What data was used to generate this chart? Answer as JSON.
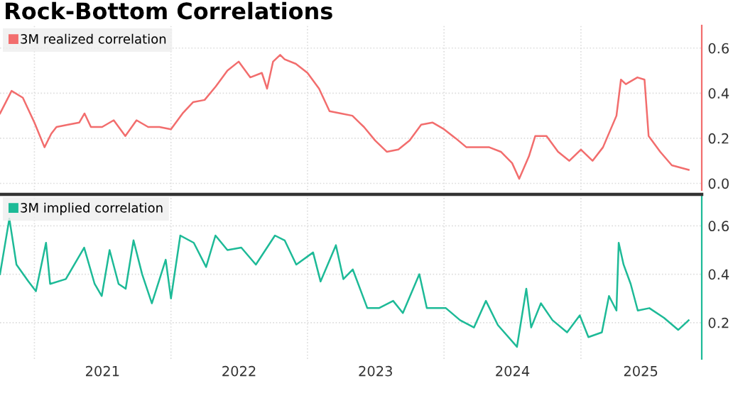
{
  "chart_data": [
    {
      "type": "line",
      "title": "Rock-Bottom Correlations",
      "legend": "top left",
      "grid": true,
      "tick_labels": "y",
      "xlim": [
        "2020-10-01",
        "2025-11-20"
      ],
      "xticks": [
        {
          "value": "2021-01-01",
          "label": null
        },
        {
          "value": "2022-01-01",
          "label": null
        },
        {
          "value": "2023-01-01",
          "label": null
        },
        {
          "value": "2024-01-01",
          "label": null
        },
        {
          "value": "2025-01-01",
          "label": null
        }
      ],
      "ylim": [
        -0.03,
        0.7
      ],
      "yticks": [
        {
          "value": 0.0,
          "label": "0.0"
        },
        0.2,
        0.4,
        0.6
      ],
      "series": [
        {
          "name": "3M realized correlation",
          "color": "#f26d6d",
          "x": [
            "2020-10-01",
            "2020-11-01",
            "2020-12-01",
            "2021-01-01",
            "2021-01-28",
            "2021-02-15",
            "2021-03-01",
            "2021-04-01",
            "2021-05-01",
            "2021-05-15",
            "2021-06-01",
            "2021-07-01",
            "2021-08-01",
            "2021-09-01",
            "2021-10-01",
            "2021-11-01",
            "2021-12-01",
            "2022-01-01",
            "2022-02-01",
            "2022-03-01",
            "2022-04-01",
            "2022-05-01",
            "2022-06-01",
            "2022-07-01",
            "2022-08-01",
            "2022-09-01",
            "2022-09-15",
            "2022-10-01",
            "2022-10-20",
            "2022-11-01",
            "2022-12-01",
            "2023-01-01",
            "2023-02-01",
            "2023-03-01",
            "2023-04-01",
            "2023-05-01",
            "2023-06-01",
            "2023-07-01",
            "2023-08-01",
            "2023-09-01",
            "2023-10-01",
            "2023-11-01",
            "2023-12-01",
            "2024-01-01",
            "2024-02-01",
            "2024-03-01",
            "2024-04-01",
            "2024-05-01",
            "2024-06-01",
            "2024-07-01",
            "2024-07-20",
            "2024-08-15",
            "2024-09-01",
            "2024-10-01",
            "2024-11-01",
            "2024-12-01",
            "2025-01-01",
            "2025-02-01",
            "2025-03-01",
            "2025-04-06",
            "2025-04-18",
            "2025-05-01",
            "2025-06-01",
            "2025-06-20",
            "2025-07-01",
            "2025-08-01",
            "2025-09-01",
            "2025-10-16"
          ],
          "values": [
            0.31,
            0.41,
            0.38,
            0.27,
            0.16,
            0.22,
            0.25,
            0.26,
            0.27,
            0.31,
            0.25,
            0.25,
            0.28,
            0.21,
            0.28,
            0.25,
            0.25,
            0.24,
            0.31,
            0.36,
            0.37,
            0.43,
            0.5,
            0.54,
            0.47,
            0.49,
            0.42,
            0.54,
            0.57,
            0.55,
            0.53,
            0.49,
            0.42,
            0.32,
            0.31,
            0.3,
            0.25,
            0.19,
            0.14,
            0.15,
            0.19,
            0.26,
            0.27,
            0.24,
            0.2,
            0.16,
            0.16,
            0.16,
            0.14,
            0.09,
            0.02,
            0.12,
            0.21,
            0.21,
            0.14,
            0.1,
            0.15,
            0.1,
            0.16,
            0.3,
            0.46,
            0.44,
            0.47,
            0.46,
            0.21,
            0.14,
            0.08,
            0.06
          ]
        }
      ]
    },
    {
      "type": "line",
      "legend": "top left",
      "grid": true,
      "xlim": [
        "2020-10-01",
        "2025-11-20"
      ],
      "xticks": [
        {
          "value": "2021-01-01",
          "label": null
        },
        {
          "value": "2022-01-01",
          "label": null
        },
        {
          "value": "2023-01-01",
          "label": null
        },
        {
          "value": "2024-01-01",
          "label": null
        },
        {
          "value": "2025-01-01",
          "label": null
        },
        {
          "value": "2021-07-02",
          "label": "2021"
        },
        {
          "value": "2022-07-02",
          "label": "2022"
        },
        {
          "value": "2023-07-02",
          "label": "2023"
        },
        {
          "value": "2024-07-02",
          "label": "2024"
        },
        {
          "value": "2025-06-10",
          "label": "2025"
        }
      ],
      "ylim": [
        0.05,
        0.73
      ],
      "yticks": [
        0.2,
        0.4,
        0.6
      ],
      "series": [
        {
          "name": "3M implied correlation",
          "color": "#1dba97",
          "x": [
            "2020-10-01",
            "2020-10-26",
            "2020-11-14",
            "2020-12-16",
            "2021-01-05",
            "2021-02-01",
            "2021-02-12",
            "2021-03-26",
            "2021-05-14",
            "2021-06-11",
            "2021-06-30",
            "2021-07-21",
            "2021-08-14",
            "2021-09-02",
            "2021-09-23",
            "2021-10-16",
            "2021-11-11",
            "2021-12-18",
            "2022-01-01",
            "2022-01-26",
            "2022-03-03",
            "2022-04-05",
            "2022-04-30",
            "2022-06-01",
            "2022-07-08",
            "2022-08-16",
            "2022-10-06",
            "2022-11-01",
            "2022-12-02",
            "2023-01-16",
            "2023-02-05",
            "2023-03-18",
            "2023-04-07",
            "2023-05-02",
            "2023-06-10",
            "2023-07-11",
            "2023-08-18",
            "2023-09-13",
            "2023-10-27",
            "2023-11-16",
            "2024-01-06",
            "2024-02-13",
            "2024-03-21",
            "2024-04-22",
            "2024-05-24",
            "2024-07-14",
            "2024-08-08",
            "2024-08-21",
            "2024-09-16",
            "2024-10-17",
            "2024-11-25",
            "2024-12-29",
            "2025-01-21",
            "2025-02-26",
            "2025-03-17",
            "2025-04-06",
            "2025-04-12",
            "2025-04-25",
            "2025-05-14",
            "2025-06-02",
            "2025-07-03",
            "2025-08-11",
            "2025-09-18",
            "2025-10-16"
          ],
          "values": [
            0.4,
            0.63,
            0.44,
            0.37,
            0.33,
            0.53,
            0.36,
            0.38,
            0.51,
            0.36,
            0.31,
            0.5,
            0.36,
            0.34,
            0.54,
            0.4,
            0.28,
            0.46,
            0.3,
            0.56,
            0.53,
            0.43,
            0.56,
            0.5,
            0.51,
            0.44,
            0.56,
            0.54,
            0.44,
            0.49,
            0.37,
            0.52,
            0.38,
            0.42,
            0.26,
            0.26,
            0.29,
            0.24,
            0.4,
            0.26,
            0.26,
            0.21,
            0.18,
            0.29,
            0.19,
            0.1,
            0.34,
            0.18,
            0.28,
            0.21,
            0.16,
            0.23,
            0.14,
            0.16,
            0.31,
            0.25,
            0.53,
            0.44,
            0.36,
            0.25,
            0.26,
            0.22,
            0.17,
            0.21
          ]
        }
      ]
    }
  ]
}
